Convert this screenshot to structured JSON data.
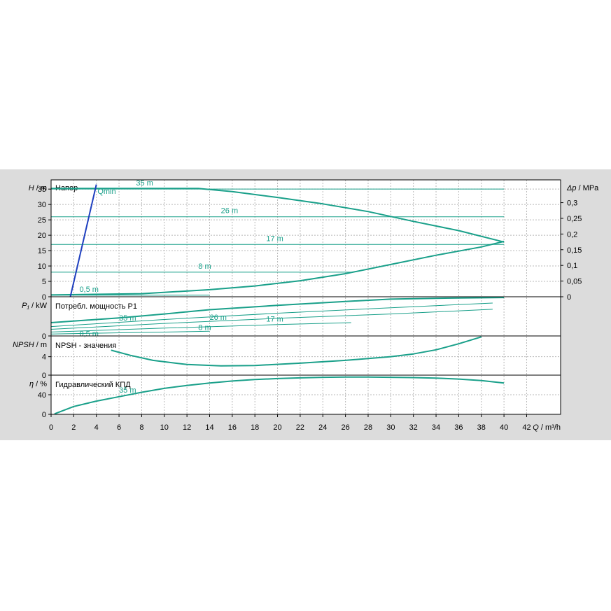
{
  "chart_data": {
    "type": "line",
    "colors": {
      "curve": "#1aa08a",
      "qmin": "#1e3fbf",
      "background": "#dcdcdc",
      "plot_bg": "#ffffff"
    },
    "x_axis": {
      "label_symbol": "Q",
      "label_unit": " / m³/h",
      "range": [
        0,
        45
      ],
      "ticks": [
        0,
        2,
        4,
        6,
        8,
        10,
        12,
        14,
        16,
        18,
        20,
        22,
        24,
        26,
        28,
        30,
        32,
        34,
        36,
        38,
        40,
        42
      ]
    },
    "head": {
      "title": "Напор",
      "ylabel_symbol": "H",
      "ylabel_unit": " / m",
      "ylim": [
        0,
        38
      ],
      "yticks": [
        0,
        5,
        10,
        15,
        20,
        25,
        30,
        35
      ],
      "right_label_symbol": "Δp",
      "right_label_unit": " / MPa",
      "right_ticks": [
        {
          "v": 0,
          "label": "0"
        },
        {
          "v": 0.05,
          "label": "0,05"
        },
        {
          "v": 0.1,
          "label": "0,1"
        },
        {
          "v": 0.15,
          "label": "0,15"
        },
        {
          "v": 0.2,
          "label": "0,2"
        },
        {
          "v": 0.25,
          "label": "0,25"
        },
        {
          "v": 0.3,
          "label": "0,3"
        }
      ],
      "qmin_label": "Qmin",
      "qmin_line": [
        [
          1.7,
          0
        ],
        [
          4.0,
          36.5
        ]
      ],
      "setpoints": [
        {
          "label": "35 m",
          "value": 35,
          "label_x": 7.5
        },
        {
          "label": "26 m",
          "value": 26,
          "label_x": 15
        },
        {
          "label": "17 m",
          "value": 17,
          "label_x": 19
        },
        {
          "label": "8 m",
          "value": 8,
          "label_x": 13
        },
        {
          "label": "0,5 m",
          "value": 0.5,
          "label_x": 2.5
        }
      ],
      "max_curve": [
        [
          0,
          35.2
        ],
        [
          13,
          35.2
        ],
        [
          16,
          34.2
        ],
        [
          20,
          32.3
        ],
        [
          24,
          30.2
        ],
        [
          28,
          27.7
        ],
        [
          32,
          24.5
        ],
        [
          36,
          21.5
        ],
        [
          40,
          17.8
        ]
      ],
      "min_curve": [
        [
          0,
          0.6
        ],
        [
          8,
          1
        ],
        [
          14,
          2.3
        ],
        [
          18,
          3.5
        ],
        [
          22,
          5.2
        ],
        [
          26,
          7.5
        ],
        [
          30,
          10.5
        ],
        [
          34,
          13.5
        ],
        [
          38,
          16.2
        ],
        [
          40,
          18
        ]
      ]
    },
    "power": {
      "title": "Потребл. мощность P1",
      "ylabel_symbol": "P₁",
      "ylabel_unit": " / kW",
      "ylim": [
        0,
        1
      ],
      "yticks": [
        0
      ],
      "series": [
        {
          "name": "35 m",
          "label_x": 6,
          "points": [
            [
              0,
              0.34
            ],
            [
              6,
              0.46
            ],
            [
              10,
              0.56
            ],
            [
              14,
              0.67
            ],
            [
              20,
              0.78
            ],
            [
              26,
              0.88
            ],
            [
              30,
              0.94
            ],
            [
              36,
              0.97
            ],
            [
              40,
              0.98
            ]
          ]
        },
        {
          "name": "26 m",
          "label_x": 14,
          "points": [
            [
              0,
              0.24
            ],
            [
              10,
              0.42
            ],
            [
              20,
              0.58
            ],
            [
              30,
              0.72
            ],
            [
              39,
              0.84
            ]
          ]
        },
        {
          "name": "17 m",
          "label_x": 19,
          "points": [
            [
              0,
              0.17
            ],
            [
              10,
              0.32
            ],
            [
              20,
              0.45
            ],
            [
              30,
              0.56
            ],
            [
              39,
              0.68
            ]
          ]
        },
        {
          "name": "8 m",
          "label_x": 13,
          "points": [
            [
              0,
              0.1
            ],
            [
              10,
              0.2
            ],
            [
              20,
              0.29
            ],
            [
              26.5,
              0.34
            ]
          ]
        },
        {
          "name": "0,5 m",
          "label_x": 2.5,
          "points": [
            [
              0,
              0.05
            ],
            [
              8,
              0.09
            ],
            [
              14,
              0.12
            ]
          ]
        }
      ]
    },
    "npsh": {
      "title": "NPSH - значения",
      "ylabel_symbol": "NPSH",
      "ylabel_unit": " / m",
      "ylim": [
        0,
        8.5
      ],
      "yticks": [
        0,
        4
      ],
      "curve": [
        [
          5.3,
          5.4
        ],
        [
          7,
          4.3
        ],
        [
          9,
          3.2
        ],
        [
          12,
          2.3
        ],
        [
          15,
          2
        ],
        [
          18,
          2.1
        ],
        [
          22,
          2.6
        ],
        [
          26,
          3.2
        ],
        [
          30,
          4
        ],
        [
          32,
          4.6
        ],
        [
          34,
          5.5
        ],
        [
          36,
          6.8
        ],
        [
          38,
          8.3
        ]
      ]
    },
    "efficiency": {
      "title": "Гидравлический КПД",
      "ylabel_symbol": "η",
      "ylabel_unit": " / %",
      "ylim": [
        0,
        80
      ],
      "yticks": [
        0,
        40
      ],
      "series_label": "35 m",
      "series_label_x": 6,
      "curve": [
        [
          0.3,
          1
        ],
        [
          2,
          16
        ],
        [
          4,
          27
        ],
        [
          6,
          36
        ],
        [
          8,
          45
        ],
        [
          10,
          53
        ],
        [
          12,
          59
        ],
        [
          14,
          64
        ],
        [
          16,
          68
        ],
        [
          18,
          71
        ],
        [
          20,
          73
        ],
        [
          22,
          74.5
        ],
        [
          24,
          75.5
        ],
        [
          26,
          76
        ],
        [
          28,
          76
        ],
        [
          30,
          75.5
        ],
        [
          32,
          75
        ],
        [
          34,
          74
        ],
        [
          36,
          72
        ],
        [
          38,
          69
        ],
        [
          40,
          64
        ]
      ]
    }
  }
}
